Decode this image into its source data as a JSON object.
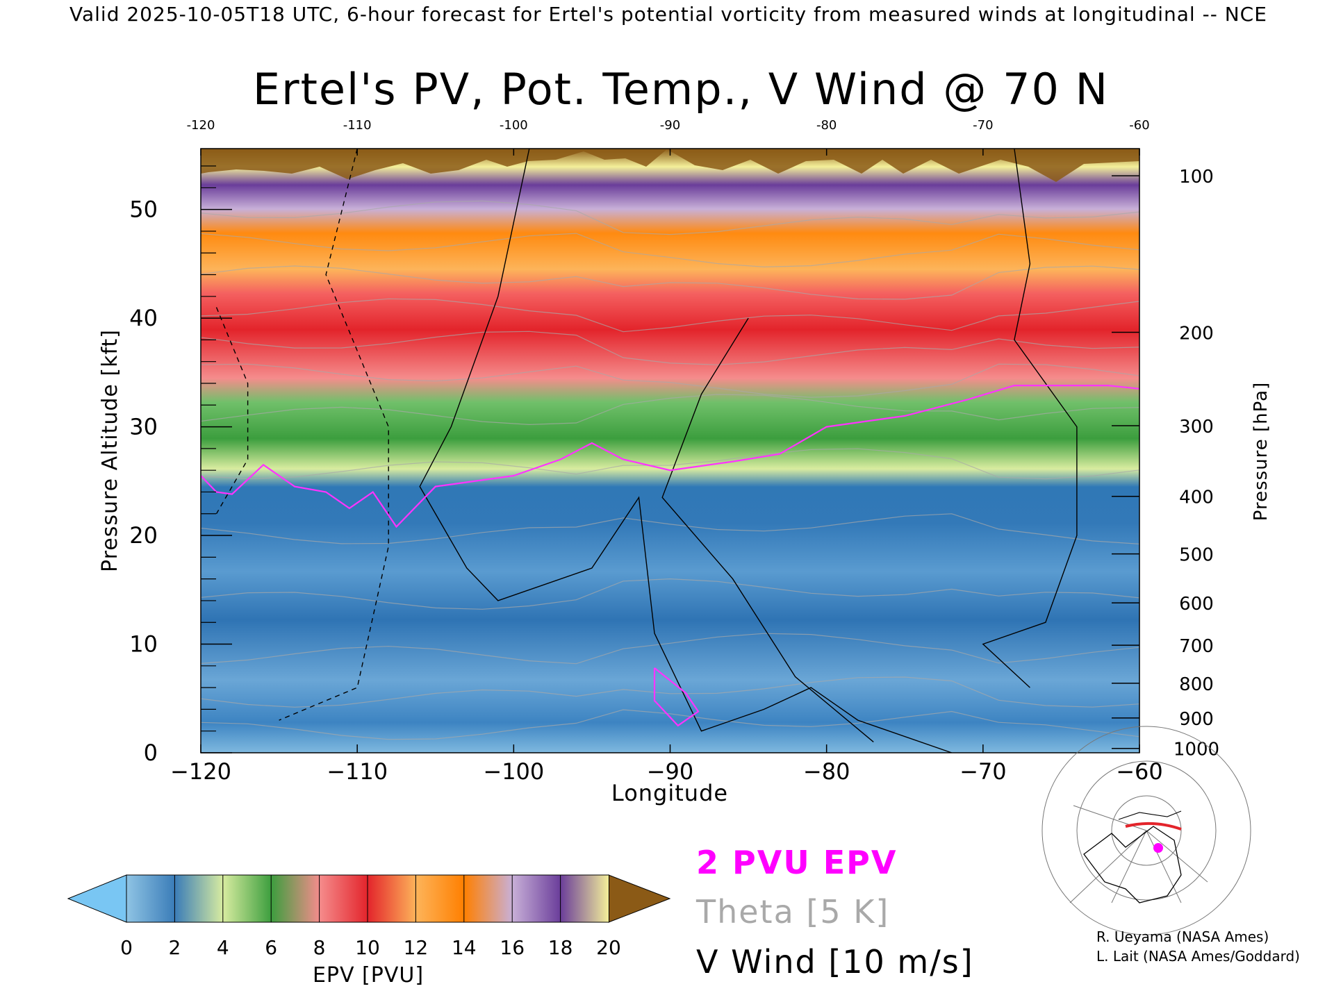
{
  "header": "Valid 2025-10-05T18 UTC, 6-hour forecast for Ertel's potential vorticity from measured winds at longitudinal -- NCE",
  "chart_data": {
    "type": "heatmap",
    "title": "Ertel's PV, Pot. Temp., V Wind @ 70 N",
    "xlabel": "Longitude",
    "ylabel": "Pressure Altitude [kft]",
    "y2label": "Pressure [hPa]",
    "xlim": [
      -120,
      -60
    ],
    "ylim": [
      0,
      55.6
    ],
    "x_ticks": [
      -120,
      -110,
      -100,
      -90,
      -80,
      -70,
      -60
    ],
    "x_tick_labels": [
      "−120",
      "−110",
      "−100",
      "−90",
      "−80",
      "−70",
      "−60"
    ],
    "top_tick_labels": [
      "-120",
      "-110",
      "-100",
      "-90",
      "-80",
      "-70",
      "-60"
    ],
    "y_ticks": [
      0,
      10,
      20,
      30,
      40,
      50
    ],
    "y_tick_labels": [
      "0",
      "10",
      "20",
      "30",
      "40",
      "50"
    ],
    "pressure_ticks": [
      {
        "label": "100",
        "kft": 53.1
      },
      {
        "label": "200",
        "kft": 38.7
      },
      {
        "label": "300",
        "kft": 30.1
      },
      {
        "label": "400",
        "kft": 23.6
      },
      {
        "label": "500",
        "kft": 18.3
      },
      {
        "label": "600",
        "kft": 13.8
      },
      {
        "label": "700",
        "kft": 9.9
      },
      {
        "label": "800",
        "kft": 6.4
      },
      {
        "label": "900",
        "kft": 3.2
      },
      {
        "label": "1000",
        "kft": 0.4
      }
    ],
    "pv_2pvu_contour_kft": [
      [
        -120,
        25.5
      ],
      [
        -119,
        24.0
      ],
      [
        -118,
        23.8
      ],
      [
        -116,
        26.5
      ],
      [
        -114,
        24.5
      ],
      [
        -112,
        24.0
      ],
      [
        -110.5,
        22.5
      ],
      [
        -109,
        24.0
      ],
      [
        -107.5,
        20.8
      ],
      [
        -105,
        24.5
      ],
      [
        -100,
        25.5
      ],
      [
        -97,
        27.0
      ],
      [
        -95,
        28.5
      ],
      [
        -93,
        27.0
      ],
      [
        -90,
        26.0
      ],
      [
        -86,
        26.8
      ],
      [
        -83,
        27.5
      ],
      [
        -80,
        30.0
      ],
      [
        -75,
        31.0
      ],
      [
        -71,
        32.5
      ],
      [
        -68,
        33.8
      ],
      [
        -62,
        33.8
      ],
      [
        -60,
        33.5
      ]
    ],
    "pv_2pvu_low_kft": [
      [
        -91,
        7.8
      ],
      [
        -89,
        5.5
      ],
      [
        -88.2,
        3.8
      ],
      [
        -89.5,
        2.5
      ],
      [
        -91,
        4.8
      ],
      [
        -91,
        7.8
      ]
    ],
    "theta_levels_K": [
      300,
      310,
      320,
      330,
      340,
      350,
      360,
      370,
      380,
      390,
      400,
      410,
      420
    ],
    "v_wind_contours": [
      {
        "label": "0",
        "points": [
          [
            -99,
            55.6
          ],
          [
            -101,
            42
          ],
          [
            -104,
            30
          ],
          [
            -106,
            24.5
          ],
          [
            -103,
            17
          ],
          [
            -101,
            14
          ],
          [
            -95,
            17
          ],
          [
            -92,
            23.5
          ],
          [
            -91,
            11
          ],
          [
            -88,
            2
          ],
          [
            -84,
            4
          ],
          [
            -81,
            6
          ],
          [
            -78,
            3
          ],
          [
            -72,
            0
          ]
        ]
      },
      {
        "label": "10",
        "points": [
          [
            -85,
            40
          ],
          [
            -88,
            33
          ],
          [
            -90.5,
            23.5
          ],
          [
            -86,
            16
          ],
          [
            -82,
            7
          ],
          [
            -77,
            1
          ]
        ]
      },
      {
        "label": "-10",
        "points": [
          [
            -110,
            55.6
          ],
          [
            -112,
            44
          ],
          [
            -108,
            30
          ],
          [
            -108,
            19
          ],
          [
            -110,
            6
          ],
          [
            -115,
            3
          ]
        ]
      },
      {
        "label": "-10",
        "points": [
          [
            -119,
            41
          ],
          [
            -117,
            34
          ],
          [
            -117,
            27
          ],
          [
            -119,
            22
          ]
        ]
      },
      {
        "label": "0",
        "points": [
          [
            -68,
            55.6
          ],
          [
            -67,
            45
          ],
          [
            -68,
            38
          ],
          [
            -64,
            30
          ],
          [
            -64,
            20
          ],
          [
            -66,
            12
          ],
          [
            -70,
            10
          ],
          [
            -67,
            6
          ]
        ]
      }
    ],
    "colorbar": {
      "label": "EPV [PVU]",
      "ticks": [
        "0",
        "2",
        "4",
        "6",
        "8",
        "10",
        "12",
        "14",
        "16",
        "18",
        "20"
      ],
      "colors": [
        "#8fc4e4",
        "#3a7cb8",
        "#d8eca0",
        "#3c9e3e",
        "#f58c8c",
        "#e3242b",
        "#fdb45a",
        "#ff7f00",
        "#c8b0d8",
        "#6a3d9a",
        "#f4f09a"
      ],
      "under_color": "#79c6f3",
      "over_color": "#8b5a16"
    },
    "legend": {
      "pv": "2 PVU EPV",
      "theta": "Theta [5 K]",
      "wind": "V Wind [10 m/s]"
    }
  },
  "credits": [
    "R. Ueyama (NASA Ames)",
    "L. Lait (NASA Ames/Goddard)"
  ],
  "colors": {
    "pv_contour": "#ff33ff",
    "theta_contour": "#9a9a9a",
    "wind_contour": "#000000"
  }
}
